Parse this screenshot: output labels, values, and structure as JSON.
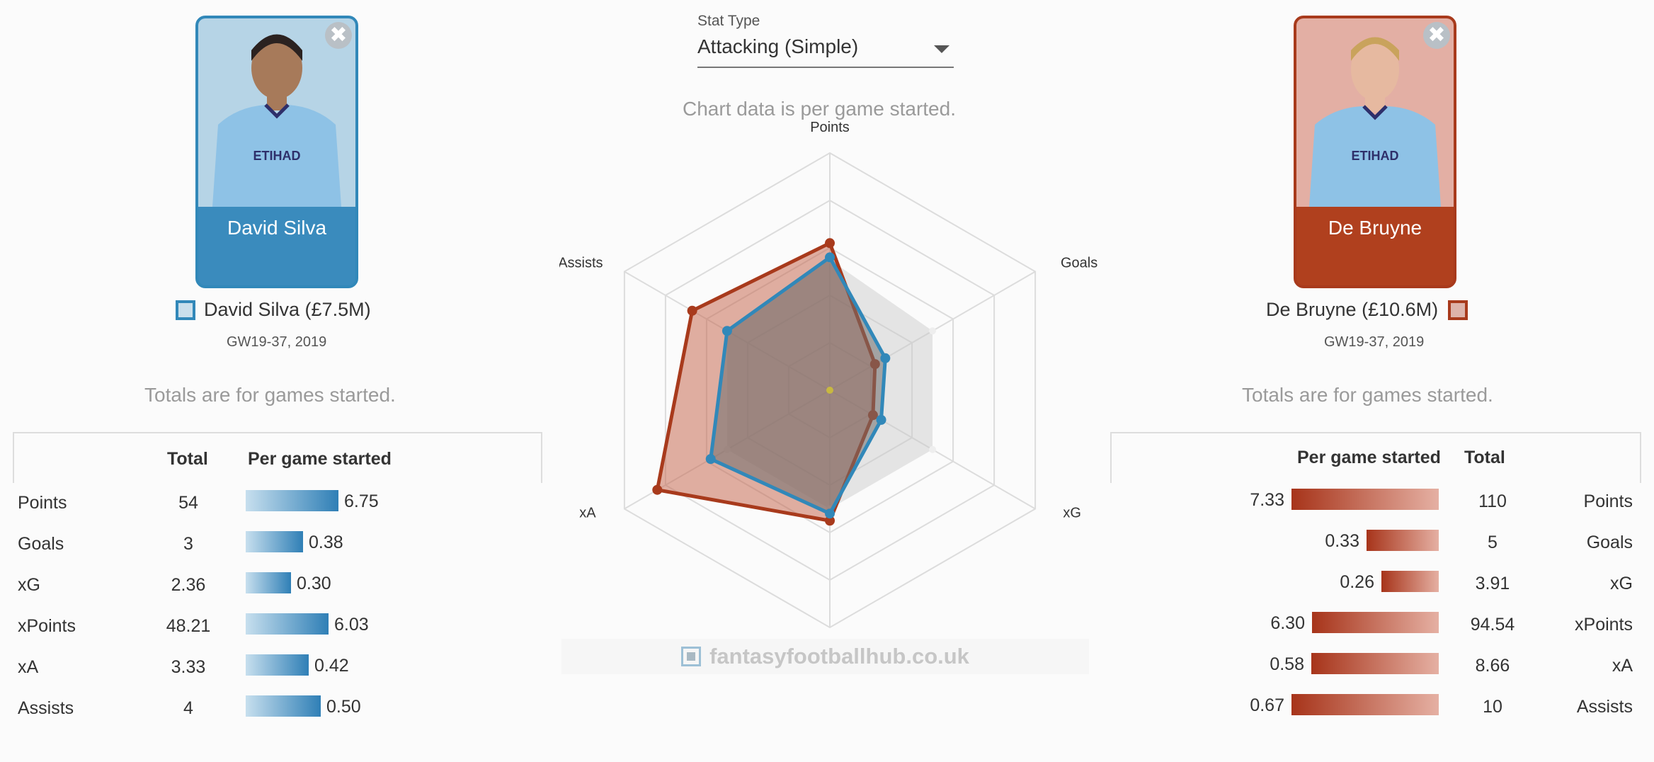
{
  "stat_type": {
    "label": "Stat Type",
    "value": "Attacking (Simple)"
  },
  "chart_note": "Chart data is per game started.",
  "players": {
    "left": {
      "card_name": "David Silva",
      "legend": "David Silva (£7.5M)",
      "period": "GW19-37, 2019",
      "totals_note": "Totals are for games started.",
      "color": "#3188b9",
      "headers": {
        "total": "Total",
        "per_game": "Per game started"
      },
      "rows": [
        {
          "label": "Points",
          "total": "54",
          "per_game": "6.75",
          "per_game_value": 6.75
        },
        {
          "label": "Goals",
          "total": "3",
          "per_game": "0.38",
          "per_game_value": 0.38
        },
        {
          "label": "xG",
          "total": "2.36",
          "per_game": "0.30",
          "per_game_value": 0.3
        },
        {
          "label": "xPoints",
          "total": "48.21",
          "per_game": "6.03",
          "per_game_value": 6.03
        },
        {
          "label": "xA",
          "total": "3.33",
          "per_game": "0.42",
          "per_game_value": 0.42
        },
        {
          "label": "Assists",
          "total": "4",
          "per_game": "0.50",
          "per_game_value": 0.5
        }
      ]
    },
    "right": {
      "card_name": "De Bruyne",
      "legend": "De Bruyne (£10.6M)",
      "period": "GW19-37, 2019",
      "totals_note": "Totals are for games started.",
      "color": "#a83a1c",
      "headers": {
        "total": "Total",
        "per_game": "Per game started"
      },
      "rows": [
        {
          "label": "Points",
          "total": "110",
          "per_game": "7.33",
          "per_game_value": 7.33
        },
        {
          "label": "Goals",
          "total": "5",
          "per_game": "0.33",
          "per_game_value": 0.33
        },
        {
          "label": "xG",
          "total": "3.91",
          "per_game": "0.26",
          "per_game_value": 0.26
        },
        {
          "label": "xPoints",
          "total": "94.54",
          "per_game": "6.30",
          "per_game_value": 6.3
        },
        {
          "label": "xA",
          "total": "8.66",
          "per_game": "0.58",
          "per_game_value": 0.58
        },
        {
          "label": "Assists",
          "total": "10",
          "per_game": "0.67",
          "per_game_value": 0.67
        }
      ]
    }
  },
  "chart_data": {
    "type": "radar",
    "axes": [
      "Points",
      "Goals",
      "xG",
      "xPoints",
      "xA",
      "Assists"
    ],
    "series": [
      {
        "name": "David Silva (£7.5M)",
        "color": "#3188b9",
        "values": [
          0.56,
          0.27,
          0.25,
          0.52,
          0.58,
          0.5
        ]
      },
      {
        "name": "De Bruyne (£10.6M)",
        "color": "#a83a1c",
        "values": [
          0.62,
          0.22,
          0.21,
          0.55,
          0.84,
          0.67
        ]
      },
      {
        "name": "",
        "color": "#cccccc",
        "values": [
          0.55,
          0.5,
          0.5,
          0.5,
          0.5,
          0.5
        ]
      }
    ],
    "rings": 5,
    "grid": true
  },
  "watermark": "fantasyfootballhub.co.uk"
}
